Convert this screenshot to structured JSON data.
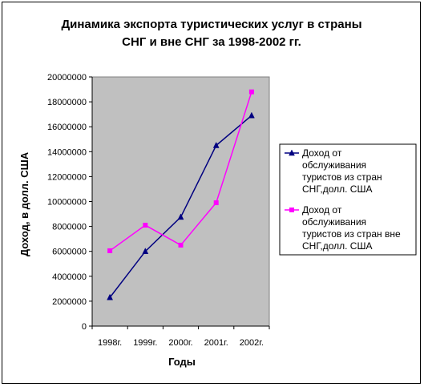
{
  "chart_data": {
    "type": "line",
    "title_line1": "Динамика экспорта туристических услуг в страны",
    "title_line2": "СНГ и вне СНГ за 1998-2002 гг.",
    "xlabel": "Годы",
    "ylabel": "Доход, в долл. США",
    "categories": [
      "1998г.",
      "1999г.",
      "2000г.",
      "2001г.",
      "2002г."
    ],
    "ylim": [
      0,
      20000000
    ],
    "y_ticks": [
      "0",
      "2000000",
      "4000000",
      "6000000",
      "8000000",
      "10000000",
      "12000000",
      "14000000",
      "16000000",
      "18000000",
      "20000000"
    ],
    "plot_background": "#c0c0c0",
    "grid": false,
    "legend_position": "right",
    "series": [
      {
        "name": "Доход от обслуживания туристов из стран СНГ,долл. США",
        "legend_lines": [
          "Доход от",
          "обслуживания",
          "туристов из стран",
          "СНГ,долл. США"
        ],
        "color": "#000080",
        "marker": "triangle",
        "values": [
          2300000,
          6000000,
          8750000,
          14500000,
          16900000
        ]
      },
      {
        "name": "Доход от обслуживания туристов из стран вне СНГ,долл. США",
        "legend_lines": [
          "Доход от",
          "обслуживания",
          "туристов из стран вне",
          "СНГ,долл. США"
        ],
        "color": "#ff00ff",
        "marker": "square",
        "values": [
          6050000,
          8100000,
          6500000,
          9900000,
          18800000
        ]
      }
    ]
  }
}
